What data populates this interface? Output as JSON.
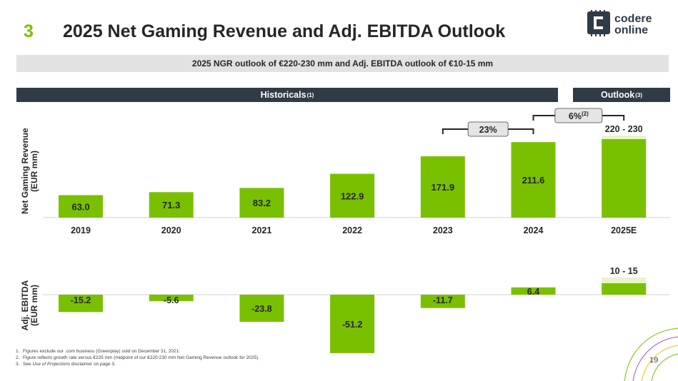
{
  "header": {
    "section_number": "3",
    "title": "2025 Net Gaming Revenue and Adj. EBITDA Outlook",
    "subtitle": "2025 NGR outlook of €220-230 mm and Adj. EBITDA outlook of €10-15 mm",
    "logo_line1": "codere",
    "logo_line2": "online"
  },
  "bands": {
    "historicals": "Historicals",
    "historicals_sup": "(1)",
    "outlook": "Outlook",
    "outlook_sup": "(3)"
  },
  "axis_labels": {
    "ngr_line1": "Net Gaming Revenue",
    "ngr_line2": "(EUR mm)",
    "ebitda_line1": "Adj. EBITDA",
    "ebitda_line2": "(EUR mm)"
  },
  "chart_data": [
    {
      "type": "bar",
      "ylabel": "Net Gaming Revenue (EUR mm)",
      "categories": [
        "2019",
        "2020",
        "2021",
        "2022",
        "2023",
        "2024",
        "2025E"
      ],
      "values": [
        63.0,
        71.3,
        83.2,
        122.9,
        171.9,
        211.6,
        null
      ],
      "labels": [
        "63.0",
        "71.3",
        "83.2",
        "122.9",
        "171.9",
        "211.6"
      ],
      "outlook_range": {
        "category": "2025E",
        "low": 220,
        "high": 230,
        "label": "220 - 230"
      },
      "growth_callouts": [
        {
          "from": "2023",
          "to": "2024",
          "label": "23%",
          "sup": ""
        },
        {
          "from": "2024",
          "to": "2025E",
          "label": "6%",
          "sup": "(2)"
        }
      ],
      "ylim": [
        0,
        235
      ],
      "colors": {
        "bar": "#79c000",
        "range_cap": "#e9f5c8"
      }
    },
    {
      "type": "bar",
      "ylabel": "Adj. EBITDA (EUR mm)",
      "categories": [
        "2019",
        "2020",
        "2021",
        "2022",
        "2023",
        "2024",
        "2025E"
      ],
      "values": [
        -15.2,
        -5.6,
        -23.8,
        -51.2,
        -11.7,
        6.4,
        null
      ],
      "labels": [
        "-15.2",
        "-5.6",
        "-23.8",
        "-51.2",
        "-11.7",
        "6.4"
      ],
      "outlook_range": {
        "category": "2025E",
        "low": 10,
        "high": 15,
        "label": "10 - 15"
      },
      "ylim": [
        -51.2,
        15
      ],
      "colors": {
        "bar": "#79c000",
        "range_cap": "#e9f5c8"
      }
    }
  ],
  "footnotes": [
    {
      "num": "1.",
      "text": "Figures exclude our .com business (Greenplay) sold on December 31, 2021."
    },
    {
      "num": "2.",
      "text": "Figure reflects growth rate versus €225 mm (midpoint of our €220-230 mm Net Gaming Revenue outlook for 2025)."
    },
    {
      "num": "3.",
      "text_before": "See ",
      "text_italic": "Use of Projections",
      "text_after": " disclaimer on page 3."
    }
  ],
  "page_number": "19",
  "colors": {
    "accent": "#79c000",
    "band_dark": "#2f3b46",
    "band_light": "#e2e2e2",
    "text": "#262626"
  }
}
